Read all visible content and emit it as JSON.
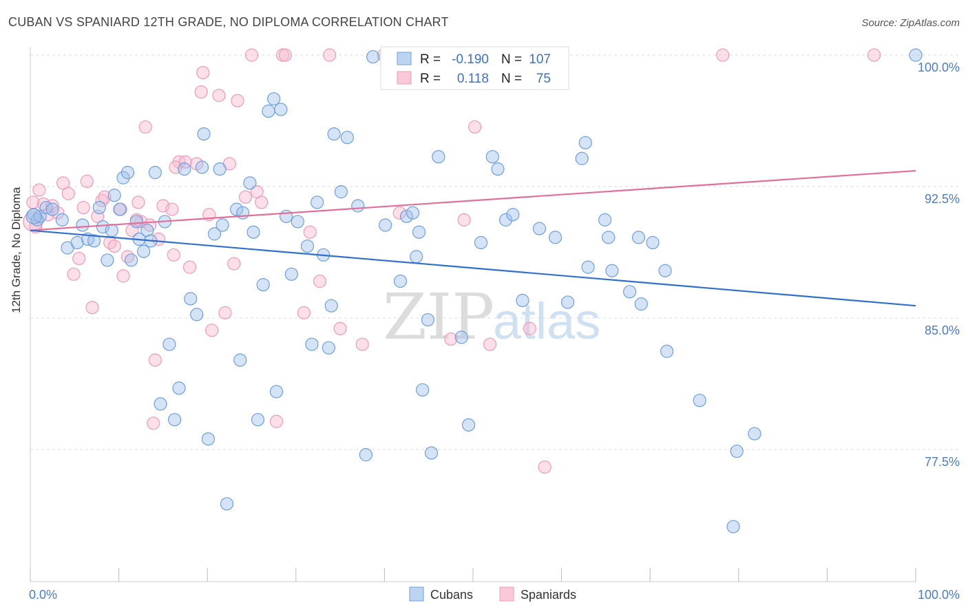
{
  "title": "CUBAN VS SPANIARD 12TH GRADE, NO DIPLOMA CORRELATION CHART",
  "source": "Source: ZipAtlas.com",
  "watermark": {
    "part1": "ZIP",
    "part2": "atlas"
  },
  "chart_data": {
    "type": "scatter",
    "xlabel": "",
    "ylabel": "12th Grade, No Diploma",
    "xlim": [
      0,
      100
    ],
    "ylim": [
      70.0,
      101.0
    ],
    "x_tick_labels": [
      "0.0%",
      "100.0%"
    ],
    "y_ticks": [
      77.5,
      85.0,
      92.5,
      100.0
    ],
    "y_tick_labels": [
      "77.5%",
      "85.0%",
      "92.5%",
      "100.0%"
    ],
    "grid": true,
    "legend_position": "top-center",
    "series": [
      {
        "name": "Cubans",
        "color": "#6e9fdc",
        "r_label": "R =",
        "r_value": "-0.190",
        "n_label": "N =",
        "n_value": "107",
        "trend": {
          "x0": 0,
          "y0": 90.0,
          "x1": 100,
          "y1": 85.7
        },
        "points": [
          [
            0.4,
            90.9
          ],
          [
            0.8,
            90.6
          ],
          [
            1.1,
            90.8
          ],
          [
            1.8,
            91.3
          ],
          [
            2.5,
            91.2
          ],
          [
            3.6,
            90.6
          ],
          [
            4.2,
            89.0
          ],
          [
            5.3,
            89.3
          ],
          [
            5.9,
            90.3
          ],
          [
            6.5,
            89.5
          ],
          [
            7.2,
            89.4
          ],
          [
            7.8,
            91.3
          ],
          [
            8.2,
            90.2
          ],
          [
            8.7,
            88.3
          ],
          [
            9.2,
            90.0
          ],
          [
            9.5,
            92.0
          ],
          [
            10.1,
            91.2
          ],
          [
            10.5,
            93.0
          ],
          [
            11.0,
            93.3
          ],
          [
            11.4,
            88.3
          ],
          [
            12.0,
            90.5
          ],
          [
            12.3,
            89.5
          ],
          [
            12.8,
            88.8
          ],
          [
            13.2,
            90.0
          ],
          [
            13.6,
            89.4
          ],
          [
            14.1,
            93.3
          ],
          [
            14.7,
            80.1
          ],
          [
            15.2,
            90.5
          ],
          [
            15.7,
            83.5
          ],
          [
            16.3,
            79.2
          ],
          [
            16.8,
            81.0
          ],
          [
            17.4,
            93.5
          ],
          [
            18.1,
            86.1
          ],
          [
            18.8,
            85.2
          ],
          [
            19.4,
            93.6
          ],
          [
            19.6,
            95.5
          ],
          [
            20.1,
            78.1
          ],
          [
            20.8,
            89.8
          ],
          [
            21.4,
            93.5
          ],
          [
            21.7,
            90.3
          ],
          [
            22.2,
            74.4
          ],
          [
            23.3,
            91.2
          ],
          [
            23.7,
            82.6
          ],
          [
            24.0,
            91.0
          ],
          [
            24.8,
            92.7
          ],
          [
            25.2,
            89.9
          ],
          [
            25.7,
            79.2
          ],
          [
            26.3,
            86.9
          ],
          [
            26.9,
            96.8
          ],
          [
            27.5,
            97.5
          ],
          [
            27.8,
            80.8
          ],
          [
            28.3,
            96.9
          ],
          [
            28.9,
            90.8
          ],
          [
            29.5,
            87.5
          ],
          [
            30.2,
            90.5
          ],
          [
            31.3,
            89.1
          ],
          [
            31.8,
            83.5
          ],
          [
            32.4,
            91.6
          ],
          [
            33.1,
            88.6
          ],
          [
            33.7,
            83.3
          ],
          [
            34.0,
            85.7
          ],
          [
            34.3,
            95.5
          ],
          [
            35.1,
            92.2
          ],
          [
            35.8,
            95.3
          ],
          [
            37.0,
            91.4
          ],
          [
            37.9,
            77.2
          ],
          [
            38.7,
            99.9
          ],
          [
            40.1,
            90.3
          ],
          [
            41.8,
            87.1
          ],
          [
            42.5,
            90.8
          ],
          [
            43.2,
            91.0
          ],
          [
            43.6,
            88.5
          ],
          [
            43.9,
            89.9
          ],
          [
            44.3,
            80.9
          ],
          [
            44.9,
            84.9
          ],
          [
            45.3,
            77.3
          ],
          [
            46.1,
            94.2
          ],
          [
            48.7,
            83.9
          ],
          [
            49.5,
            78.9
          ],
          [
            50.9,
            89.3
          ],
          [
            52.2,
            94.2
          ],
          [
            52.8,
            93.5
          ],
          [
            53.7,
            90.6
          ],
          [
            54.5,
            90.9
          ],
          [
            55.6,
            86.0
          ],
          [
            57.5,
            90.1
          ],
          [
            59.3,
            89.6
          ],
          [
            60.7,
            85.9
          ],
          [
            62.3,
            94.1
          ],
          [
            62.7,
            95.0
          ],
          [
            63.0,
            87.9
          ],
          [
            64.9,
            90.6
          ],
          [
            65.3,
            89.6
          ],
          [
            65.7,
            87.7
          ],
          [
            67.7,
            86.5
          ],
          [
            68.7,
            89.6
          ],
          [
            69.0,
            85.8
          ],
          [
            70.3,
            89.3
          ],
          [
            71.7,
            87.7
          ],
          [
            71.9,
            83.1
          ],
          [
            75.6,
            80.3
          ],
          [
            79.4,
            73.1
          ],
          [
            79.8,
            77.4
          ],
          [
            81.8,
            78.4
          ],
          [
            100.0,
            100.0
          ]
        ]
      },
      {
        "name": "Spaniards",
        "color": "#f09ab8",
        "r_label": "R =",
        "r_value": "0.118",
        "n_label": "N =",
        "n_value": "75",
        "trend": {
          "x0": 0,
          "y0": 90.0,
          "x1": 100,
          "y1": 93.4
        },
        "points": [
          [
            0.3,
            91.6
          ],
          [
            0.6,
            90.2
          ],
          [
            1.0,
            92.3
          ],
          [
            1.5,
            91.5
          ],
          [
            2.0,
            90.9
          ],
          [
            2.5,
            91.4
          ],
          [
            3.1,
            91.0
          ],
          [
            3.7,
            92.7
          ],
          [
            4.3,
            92.1
          ],
          [
            4.9,
            87.5
          ],
          [
            5.5,
            88.4
          ],
          [
            6.0,
            91.3
          ],
          [
            6.4,
            92.8
          ],
          [
            7.0,
            85.6
          ],
          [
            7.6,
            90.8
          ],
          [
            8.1,
            91.7
          ],
          [
            8.4,
            91.9
          ],
          [
            9.0,
            89.3
          ],
          [
            9.5,
            89.1
          ],
          [
            10.2,
            91.2
          ],
          [
            10.5,
            87.4
          ],
          [
            11.0,
            88.5
          ],
          [
            11.5,
            90.0
          ],
          [
            12.2,
            91.6
          ],
          [
            12.5,
            90.5
          ],
          [
            13.0,
            95.9
          ],
          [
            13.5,
            90.3
          ],
          [
            14.1,
            82.6
          ],
          [
            14.5,
            89.5
          ],
          [
            15.0,
            91.4
          ],
          [
            13.9,
            79.0
          ],
          [
            16.2,
            88.6
          ],
          [
            16.8,
            93.9
          ],
          [
            17.5,
            93.9
          ],
          [
            18.0,
            87.9
          ],
          [
            18.8,
            93.8
          ],
          [
            16.4,
            93.6
          ],
          [
            19.3,
            97.9
          ],
          [
            19.5,
            99.0
          ],
          [
            20.2,
            90.9
          ],
          [
            20.5,
            84.3
          ],
          [
            21.3,
            97.7
          ],
          [
            22.5,
            93.8
          ],
          [
            22.0,
            85.3
          ],
          [
            23.0,
            88.1
          ],
          [
            23.4,
            97.4
          ],
          [
            24.3,
            91.9
          ],
          [
            25.0,
            100.0
          ],
          [
            25.6,
            92.2
          ],
          [
            26.1,
            91.6
          ],
          [
            27.8,
            79.1
          ],
          [
            28.5,
            100.0
          ],
          [
            28.8,
            100.0
          ],
          [
            30.9,
            85.3
          ],
          [
            31.6,
            89.9
          ],
          [
            32.7,
            87.1
          ],
          [
            33.8,
            100.0
          ],
          [
            35.0,
            84.4
          ],
          [
            37.5,
            83.5
          ],
          [
            39.9,
            100.0
          ],
          [
            41.7,
            91.0
          ],
          [
            41.4,
            100.0
          ],
          [
            47.5,
            83.8
          ],
          [
            47.9,
            100.0
          ],
          [
            49.0,
            90.6
          ],
          [
            50.2,
            95.9
          ],
          [
            51.9,
            83.5
          ],
          [
            53.9,
            100.0
          ],
          [
            56.4,
            84.4
          ],
          [
            58.1,
            76.5
          ],
          [
            60.1,
            100.0
          ],
          [
            78.2,
            100.0
          ],
          [
            95.3,
            100.0
          ],
          [
            12.0,
            90.6
          ],
          [
            16.0,
            91.2
          ]
        ]
      }
    ]
  }
}
